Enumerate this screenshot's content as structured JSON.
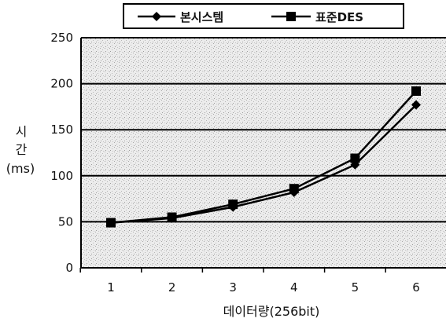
{
  "chart_data": {
    "type": "line",
    "title": "",
    "xlabel": "데이터량(256bit)",
    "ylabel_lines": [
      "시",
      "간",
      "(ms)"
    ],
    "categories": [
      "1",
      "2",
      "3",
      "4",
      "5",
      "6"
    ],
    "ylim": [
      0,
      250
    ],
    "yticks": [
      "0",
      "50",
      "100",
      "150",
      "200",
      "250"
    ],
    "grid": true,
    "legend_position": "top",
    "series": [
      {
        "name": "본시스템",
        "marker": "diamond",
        "values": [
          49,
          54,
          66,
          82,
          112,
          177
        ]
      },
      {
        "name": "표준DES",
        "marker": "square",
        "values": [
          49,
          55,
          69,
          86,
          119,
          192
        ]
      }
    ]
  }
}
